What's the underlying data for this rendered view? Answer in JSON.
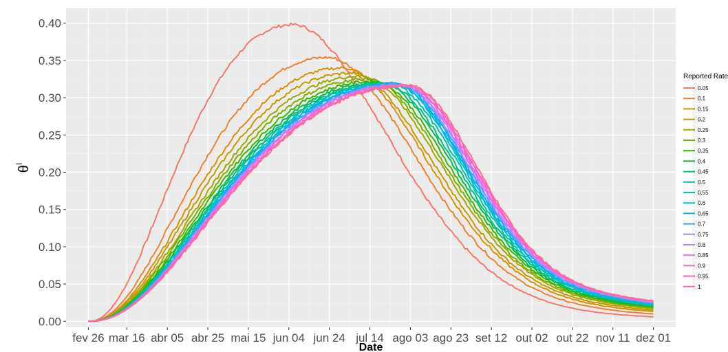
{
  "chart_data": {
    "type": "line",
    "xlabel": "Date",
    "ylabel": "θ",
    "ylabel_superscript": "I",
    "x_ticks": [
      "fev 26",
      "mar 16",
      "abr 05",
      "abr 25",
      "mai 15",
      "jun 04",
      "jun 24",
      "jul 14",
      "ago 03",
      "ago 23",
      "set 12",
      "out 02",
      "out 22",
      "nov 11",
      "dez 01"
    ],
    "x_tick_values": [
      0,
      19,
      39,
      59,
      79,
      99,
      119,
      139,
      159,
      179,
      199,
      219,
      239,
      259,
      279
    ],
    "xlim": [
      -11,
      290
    ],
    "y_ticks": [
      "0.00",
      "0.05",
      "0.10",
      "0.15",
      "0.20",
      "0.25",
      "0.30",
      "0.35",
      "0.40"
    ],
    "ylim": [
      -0.008,
      0.42
    ],
    "grid": true,
    "legend": {
      "title": "Reported Rate",
      "position": "right",
      "labels": [
        "0.05",
        "0.1",
        "0.15",
        "0.2",
        "0.25",
        "0.3",
        "0.35",
        "0.4",
        "0.45",
        "0.5",
        "0.55",
        "0.6",
        "0.65",
        "0.7",
        "0.75",
        "0.8",
        "0.85",
        "0.9",
        "0.95",
        "1"
      ]
    },
    "colors": [
      "#F8766D",
      "#EA8331",
      "#D89000",
      "#C09B00",
      "#A3A500",
      "#7CAE00",
      "#39B600",
      "#00BB4E",
      "#00BF7D",
      "#00C1A3",
      "#00BFC4",
      "#00BAE0",
      "#00B0F6",
      "#35A2FF",
      "#9590FF",
      "#C77CFF",
      "#E76BF3",
      "#FA62DB",
      "#FF62BC",
      "#FF6C91"
    ],
    "x_start": 0,
    "x_end": 279,
    "series": [
      {
        "name": "0.05",
        "peak_x": 101,
        "peak": 0.398,
        "end": 0.006
      },
      {
        "name": "0.1",
        "peak_x": 118,
        "peak": 0.354,
        "end": 0.01
      },
      {
        "name": "0.15",
        "peak_x": 126,
        "peak": 0.34,
        "end": 0.013
      },
      {
        "name": "0.2",
        "peak_x": 130,
        "peak": 0.333,
        "end": 0.015
      },
      {
        "name": "0.25",
        "peak_x": 135,
        "peak": 0.329,
        "end": 0.017
      },
      {
        "name": "0.3",
        "peak_x": 138,
        "peak": 0.325,
        "end": 0.018
      },
      {
        "name": "0.35",
        "peak_x": 141,
        "peak": 0.322,
        "end": 0.019
      },
      {
        "name": "0.4",
        "peak_x": 144,
        "peak": 0.32,
        "end": 0.02
      },
      {
        "name": "0.45",
        "peak_x": 146,
        "peak": 0.319,
        "end": 0.021
      },
      {
        "name": "0.5",
        "peak_x": 148,
        "peak": 0.319,
        "end": 0.022
      },
      {
        "name": "0.55",
        "peak_x": 150,
        "peak": 0.319,
        "end": 0.022
      },
      {
        "name": "0.6",
        "peak_x": 151,
        "peak": 0.318,
        "end": 0.023
      },
      {
        "name": "0.65",
        "peak_x": 152,
        "peak": 0.318,
        "end": 0.024
      },
      {
        "name": "0.7",
        "peak_x": 153,
        "peak": 0.318,
        "end": 0.025
      },
      {
        "name": "0.75",
        "peak_x": 154,
        "peak": 0.317,
        "end": 0.025
      },
      {
        "name": "0.8",
        "peak_x": 155,
        "peak": 0.317,
        "end": 0.026
      },
      {
        "name": "0.85",
        "peak_x": 156,
        "peak": 0.317,
        "end": 0.026
      },
      {
        "name": "0.9",
        "peak_x": 157,
        "peak": 0.316,
        "end": 0.027
      },
      {
        "name": "0.95",
        "peak_x": 158,
        "peak": 0.316,
        "end": 0.027
      },
      {
        "name": "1",
        "peak_x": 159,
        "peak": 0.316,
        "end": 0.027
      }
    ]
  }
}
